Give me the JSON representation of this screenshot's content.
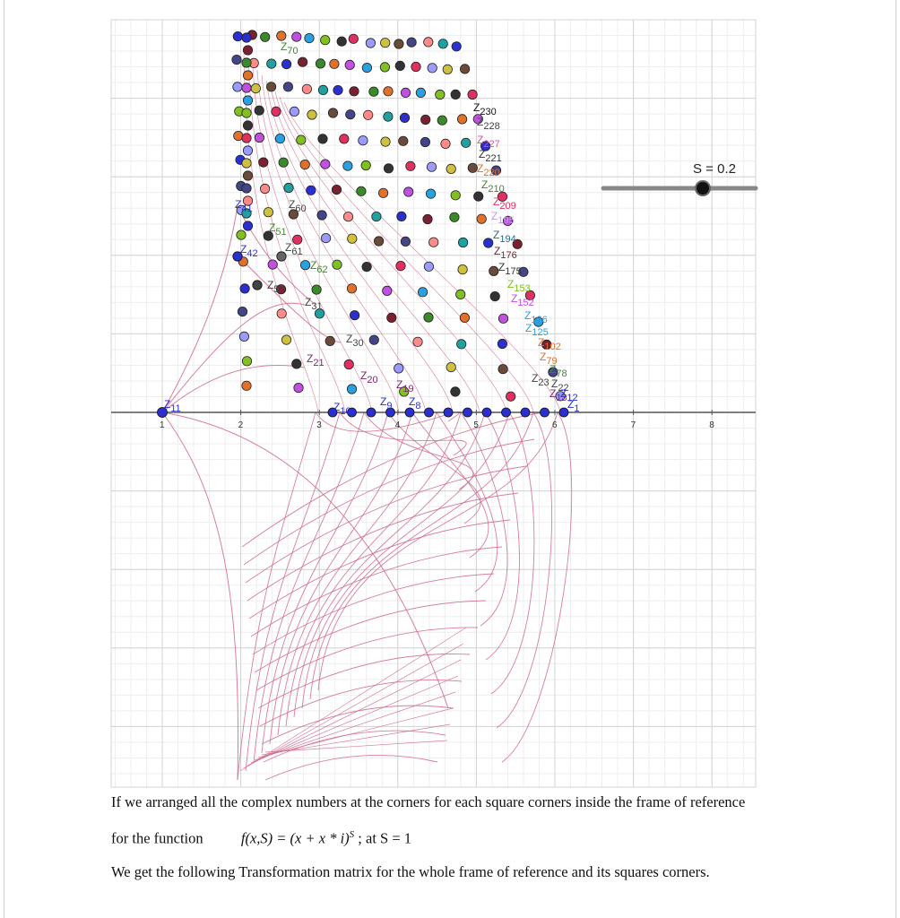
{
  "figure": {
    "slider": {
      "name": "S",
      "value": "0.2",
      "label": "S = 0.2"
    },
    "x_axis_ticks": [
      "1",
      "2",
      "3",
      "4",
      "5",
      "6",
      "7",
      "8"
    ],
    "point_labels": [
      {
        "text": "Z11",
        "color": "#2b2fd0"
      },
      {
        "text": "Z10",
        "color": "#2b2fd0"
      },
      {
        "text": "Z9",
        "color": "#2b2fd0"
      },
      {
        "text": "Z8",
        "color": "#2b2fd0"
      },
      {
        "text": "Z1",
        "color": "#2b2fd0"
      },
      {
        "text": "Z42",
        "color": "#2b2fd0"
      },
      {
        "text": "Z41",
        "color": "#2b2fd0"
      },
      {
        "text": "Z61",
        "color": "#444444"
      },
      {
        "text": "Z60",
        "color": "#444444"
      },
      {
        "text": "Z62",
        "color": "#3a8a2a"
      },
      {
        "text": "Z52",
        "color": "#444444"
      },
      {
        "text": "Z51",
        "color": "#3a8a2a"
      },
      {
        "text": "Z31",
        "color": "#444444"
      },
      {
        "text": "Z30",
        "color": "#444444"
      },
      {
        "text": "Z21",
        "color": "#7a2a6a"
      },
      {
        "text": "Z20",
        "color": "#7a2a6a"
      },
      {
        "text": "Z19",
        "color": "#7a2a6a"
      },
      {
        "text": "Z13",
        "color": "#7a2a6a"
      },
      {
        "text": "Z12",
        "color": "#2b2fd0"
      },
      {
        "text": "Z22",
        "color": "#444444"
      },
      {
        "text": "Z23",
        "color": "#444444"
      },
      {
        "text": "Z78",
        "color": "#3a8a2a"
      },
      {
        "text": "Z79",
        "color": "#e0702a"
      },
      {
        "text": "Z102",
        "color": "#e0702a"
      },
      {
        "text": "Z125",
        "color": "#2aa0e0"
      },
      {
        "text": "Z126",
        "color": "#2aa0e0"
      },
      {
        "text": "Z152",
        "color": "#c050e0"
      },
      {
        "text": "Z153",
        "color": "#80c020"
      },
      {
        "text": "Z175",
        "color": "#333333"
      },
      {
        "text": "Z176",
        "color": "#7a2030"
      },
      {
        "text": "Z194",
        "color": "#2a6a8a"
      },
      {
        "text": "Z195",
        "color": "#c0a0e0"
      },
      {
        "text": "Z209",
        "color": "#e03060"
      },
      {
        "text": "Z210",
        "color": "#3a8a2a"
      },
      {
        "text": "Z220",
        "color": "#e0702a"
      },
      {
        "text": "Z221",
        "color": "#333333"
      },
      {
        "text": "Z227",
        "color": "#e050a0"
      },
      {
        "text": "Z228",
        "color": "#444444"
      },
      {
        "text": "Z230",
        "color": "#111111"
      },
      {
        "text": "Z70",
        "color": "#3a8a2a"
      }
    ]
  },
  "caption": {
    "line1": "If we arranged all the complex numbers at the corners for each square corners inside the frame of reference",
    "line2_prefix": "for the function",
    "line2_formula": "f(x,S) = (x + x * i)",
    "line2_exponent": "S",
    "line2_suffix": " ; at S = 1",
    "line3": "We get the following Transformation matrix for the whole frame of reference and its squares corners."
  },
  "colors": {
    "grid_minor": "#eeeeee",
    "grid_major": "#d4d4d4",
    "axis": "#555555",
    "curves": "#d06a8a",
    "slider_track": "#888888",
    "slider_knob": "#111111"
  },
  "icons": {
    "slider_knob": "slider-knob-icon"
  }
}
